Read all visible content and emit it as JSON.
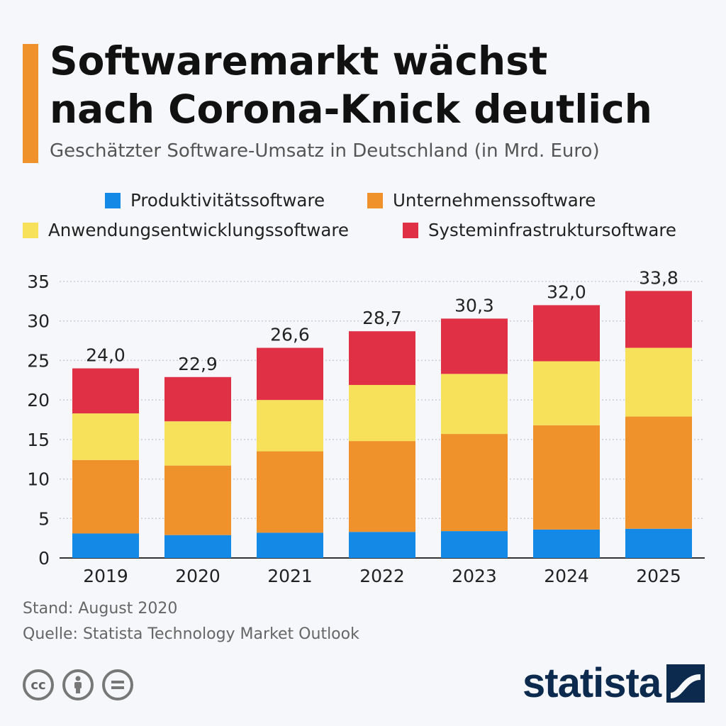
{
  "header": {
    "title_line1": "Softwaremarkt wächst",
    "title_line2": "nach Corona-Knick deutlich",
    "subtitle": "Geschätzter Software-Umsatz in Deutschland (in Mrd. Euro)"
  },
  "colors": {
    "accent": "#f0922b",
    "produktivitaet": "#1489e5",
    "unternehmen": "#f0922b",
    "anwendung": "#f8e15a",
    "system": "#e03046",
    "brand": "#0b2a4e"
  },
  "legend": [
    {
      "label": "Produktivitätssoftware",
      "color": "#1489e5"
    },
    {
      "label": "Unternehmenssoftware",
      "color": "#f0922b"
    },
    {
      "label": "Anwendungsentwicklungssoftware",
      "color": "#f8e15a"
    },
    {
      "label": "Systeminfrastruktursoftware",
      "color": "#e03046"
    }
  ],
  "chart_data": {
    "type": "bar",
    "stacked": true,
    "categories": [
      "2019",
      "2020",
      "2021",
      "2022",
      "2023",
      "2024",
      "2025"
    ],
    "series": [
      {
        "name": "Produktivitätssoftware",
        "color": "#1489e5",
        "values": [
          3.1,
          2.9,
          3.2,
          3.3,
          3.4,
          3.6,
          3.7
        ]
      },
      {
        "name": "Unternehmenssoftware",
        "color": "#f0922b",
        "values": [
          9.3,
          8.8,
          10.3,
          11.5,
          12.3,
          13.2,
          14.2
        ]
      },
      {
        "name": "Anwendungsentwicklungssoftware",
        "color": "#f8e15a",
        "values": [
          5.9,
          5.6,
          6.5,
          7.1,
          7.6,
          8.1,
          8.7
        ]
      },
      {
        "name": "Systeminfrastruktursoftware",
        "color": "#e03046",
        "values": [
          5.7,
          5.6,
          6.6,
          6.8,
          7.0,
          7.1,
          7.2
        ]
      }
    ],
    "totals": [
      "24,0",
      "22,9",
      "26,6",
      "28,7",
      "30,3",
      "32,0",
      "33,8"
    ],
    "totals_values": [
      24.0,
      22.9,
      26.6,
      28.7,
      30.3,
      32.0,
      33.8
    ],
    "yticks": [
      0,
      5,
      10,
      15,
      20,
      25,
      30,
      35
    ],
    "ylim": [
      0,
      35
    ],
    "grid": true,
    "xlabel": "",
    "ylabel": "",
    "legend_position": "top"
  },
  "footer": {
    "stand": "Stand: August 2020",
    "quelle": "Quelle: Statista Technology Market Outlook",
    "brand": "statista",
    "license_icons": [
      "cc-icon",
      "by-icon",
      "nd-icon"
    ]
  }
}
